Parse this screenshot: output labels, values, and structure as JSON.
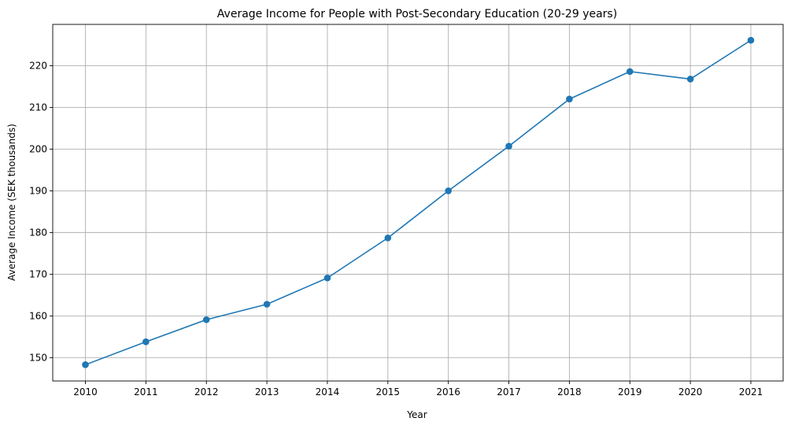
{
  "chart_data": {
    "type": "line",
    "title": "Average Income for People with Post-Secondary Education (20-29 years)",
    "xlabel": "Year",
    "ylabel": "Average Income (SEK thousands)",
    "x": [
      "2010",
      "2011",
      "2012",
      "2013",
      "2014",
      "2015",
      "2016",
      "2017",
      "2018",
      "2019",
      "2020",
      "2021"
    ],
    "y": [
      148.3,
      153.8,
      159.1,
      162.8,
      169.1,
      178.7,
      190.0,
      200.7,
      212.0,
      218.6,
      216.8,
      226.1
    ],
    "ylim": [
      144.4,
      229.9
    ],
    "yticks": [
      "150",
      "160",
      "170",
      "180",
      "190",
      "200",
      "210",
      "220"
    ],
    "grid": true,
    "line_color": "#1f77b4",
    "marker": "circle"
  }
}
